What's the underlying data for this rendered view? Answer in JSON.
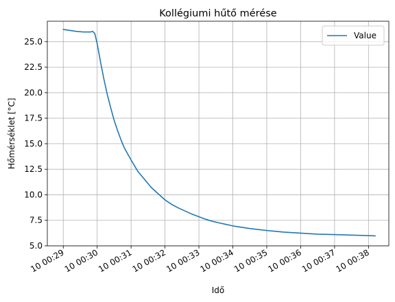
{
  "chart_data": {
    "type": "line",
    "title": "Kollégiumi hűtő mérése",
    "xlabel": "Idő",
    "ylabel": "Hőmérséklet [°C]",
    "x_tick_labels": [
      "10 00:29",
      "10 00:30",
      "10 00:31",
      "10 00:32",
      "10 00:33",
      "10 00:34",
      "10 00:35",
      "10 00:36",
      "10 00:37",
      "10 00:38"
    ],
    "x_tick_minutes": [
      0,
      1,
      2,
      3,
      4,
      5,
      6,
      7,
      8,
      9
    ],
    "xlim": [
      -0.47,
      9.6
    ],
    "y_ticks": [
      5.0,
      7.5,
      10.0,
      12.5,
      15.0,
      17.5,
      20.0,
      22.5,
      25.0
    ],
    "y_tick_labels": [
      "5.0",
      "7.5",
      "10.0",
      "12.5",
      "15.0",
      "17.5",
      "20.0",
      "22.5",
      "25.0"
    ],
    "ylim": [
      5.0,
      27.0
    ],
    "grid": true,
    "legend_position": "upper right",
    "series": [
      {
        "name": "Value",
        "color": "#1f77b4",
        "x": [
          0,
          0.2,
          0.4,
          0.6,
          0.8,
          0.87,
          0.93,
          1.0,
          1.1,
          1.2,
          1.3,
          1.4,
          1.5,
          1.6,
          1.7,
          1.8,
          2.0,
          2.2,
          2.4,
          2.6,
          2.8,
          3.0,
          3.2,
          3.4,
          3.6,
          3.8,
          4.0,
          4.2,
          4.4,
          4.6,
          4.8,
          5.0,
          5.5,
          6.0,
          6.5,
          7.0,
          7.5,
          8.0,
          8.5,
          9.0,
          9.2
        ],
        "y": [
          26.2,
          26.1,
          26.0,
          25.95,
          25.95,
          26.0,
          25.8,
          24.8,
          23.0,
          21.3,
          19.8,
          18.5,
          17.3,
          16.3,
          15.4,
          14.6,
          13.4,
          12.3,
          11.5,
          10.7,
          10.1,
          9.5,
          9.05,
          8.7,
          8.4,
          8.1,
          7.85,
          7.6,
          7.4,
          7.25,
          7.1,
          6.95,
          6.7,
          6.5,
          6.35,
          6.25,
          6.15,
          6.1,
          6.05,
          6.0,
          5.98
        ]
      }
    ]
  }
}
